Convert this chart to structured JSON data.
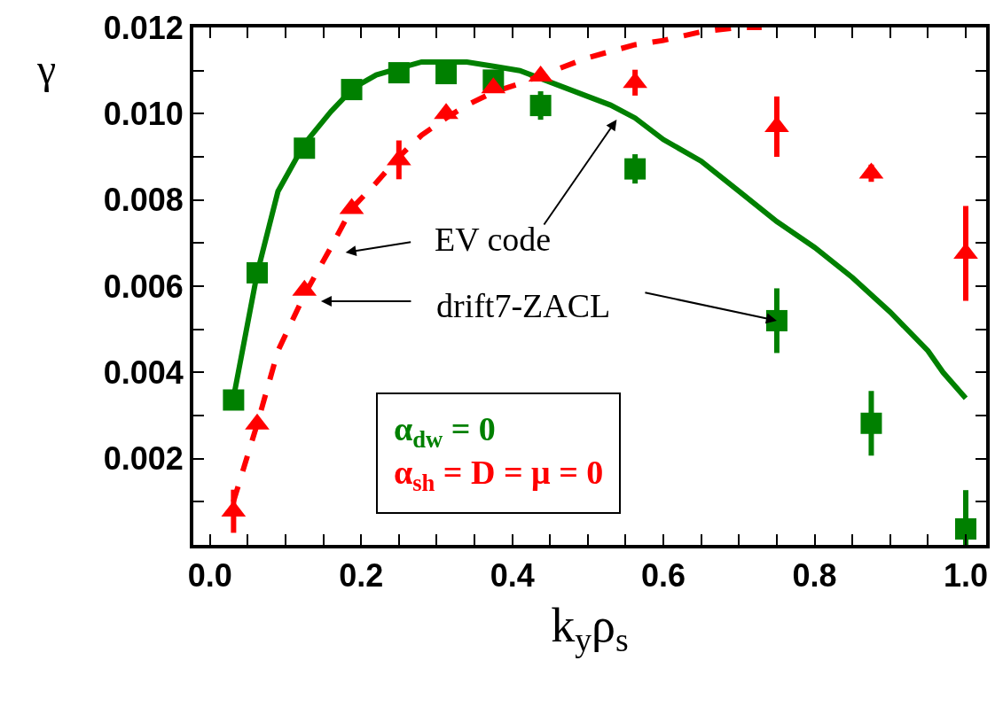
{
  "chart_data": {
    "type": "scatter",
    "xlabel": "k$_{y}$ρ$_{s}$",
    "ylabel": "γ",
    "xlim": [
      -0.022,
      1.027
    ],
    "ylim": [
      0,
      0.012
    ],
    "xticks": [
      {
        "value": 0,
        "label": "0.0"
      },
      {
        "value": 0.05,
        "label": null
      },
      {
        "value": 0.1,
        "label": null
      },
      {
        "value": 0.15,
        "label": null
      },
      0.2,
      {
        "value": 0.25,
        "label": null
      },
      {
        "value": 0.3,
        "label": null
      },
      {
        "value": 0.35,
        "label": null
      },
      0.4,
      {
        "value": 0.45,
        "label": null
      },
      {
        "value": 0.5,
        "label": null
      },
      {
        "value": 0.55,
        "label": null
      },
      0.6,
      {
        "value": 0.65,
        "label": null
      },
      {
        "value": 0.7,
        "label": null
      },
      {
        "value": 0.75,
        "label": null
      },
      0.8,
      {
        "value": 0.85,
        "label": null
      },
      {
        "value": 0.9,
        "label": null
      },
      {
        "value": 0.95,
        "label": null
      },
      {
        "value": 1,
        "label": "1.0"
      }
    ],
    "yticks": [
      {
        "value": 0.001,
        "label": null
      },
      0.002,
      {
        "value": 0.003,
        "label": null
      },
      0.004,
      {
        "value": 0.005,
        "label": null
      },
      0.006,
      {
        "value": 0.007,
        "label": null
      },
      0.008,
      {
        "value": 0.009,
        "label": null
      },
      {
        "value": 0.01,
        "label": "0.010"
      },
      {
        "value": 0.011,
        "label": null
      },
      0.012
    ],
    "grid": false,
    "legend": "bottom",
    "series": [
      {
        "type": "line",
        "color": "#008000",
        "line_style": "solid",
        "marker": "none",
        "x": [
          0.031,
          0.0625,
          0.09,
          0.125,
          0.16,
          0.19,
          0.22,
          0.25,
          0.28,
          0.31,
          0.34,
          0.375,
          0.41,
          0.47,
          0.5,
          0.53,
          0.5625,
          0.6,
          0.65,
          0.7,
          0.75,
          0.8,
          0.85,
          0.9,
          0.95,
          0.97,
          1.0
        ],
        "values": [
          0.0034,
          0.0063,
          0.0082,
          0.0093,
          0.01005,
          0.0106,
          0.0109,
          0.01105,
          0.0112,
          0.0112,
          0.0112,
          0.0111,
          0.011,
          0.0106,
          0.0104,
          0.0102,
          0.0099,
          0.0094,
          0.0089,
          0.0082,
          0.0075,
          0.0069,
          0.0062,
          0.0054,
          0.0045,
          0.004,
          0.0034
        ]
      },
      {
        "type": "line",
        "color": "#ff0000",
        "line_style": "dashed",
        "marker": "none",
        "x": [
          0.031,
          0.0625,
          0.09,
          0.125,
          0.16,
          0.1875,
          0.22,
          0.25,
          0.28,
          0.3125,
          0.34,
          0.375,
          0.41,
          0.44,
          0.5,
          0.5625,
          0.6,
          0.65,
          0.7,
          0.73
        ],
        "values": [
          0.001,
          0.0028,
          0.0045,
          0.0058,
          0.0069,
          0.0078,
          0.0084,
          0.009,
          0.0095,
          0.0099,
          0.0102,
          0.0105,
          0.0107,
          0.0109,
          0.0113,
          0.0116,
          0.0117,
          0.0119,
          0.012,
          0.012
        ]
      },
      {
        "name": "α$_{dw}$ = 0",
        "color": "#008000",
        "marker": "square",
        "x": [
          0.03125,
          0.0625,
          0.125,
          0.1875,
          0.25,
          0.3125,
          0.375,
          0.4375,
          0.5625,
          0.75,
          0.875,
          1.0
        ],
        "values": [
          0.00336,
          0.00631,
          0.0092,
          0.01056,
          0.01095,
          0.01093,
          0.01078,
          0.01019,
          0.00872,
          0.0052,
          0.00282,
          0.00037
        ],
        "errors": [
          null,
          null,
          null,
          null,
          null,
          null,
          null,
          0.00033,
          0.00034,
          0.00075,
          0.00075,
          0.0009
        ]
      },
      {
        "name": "α$_{sh}$ = D = μ = 0",
        "color": "#ff0000",
        "marker": "triangle",
        "x": [
          0.03125,
          0.0625,
          0.125,
          0.1875,
          0.25,
          0.3125,
          0.375,
          0.4375,
          0.5625,
          0.75,
          0.875,
          1.0
        ],
        "values": [
          0.00078,
          0.0028,
          0.0059,
          0.0078,
          0.00893,
          0.01,
          0.0106,
          0.01087,
          0.01072,
          0.0097,
          0.00862,
          0.00676
        ],
        "errors": [
          0.0005,
          null,
          null,
          null,
          0.00045,
          null,
          null,
          null,
          0.0003,
          0.0007,
          0.0002,
          0.0011
        ]
      }
    ],
    "annotations": [
      "EV code",
      {
        "text": "drift7-ZACL",
        "x": 0.75,
        "y": 0.0052
      }
    ]
  }
}
